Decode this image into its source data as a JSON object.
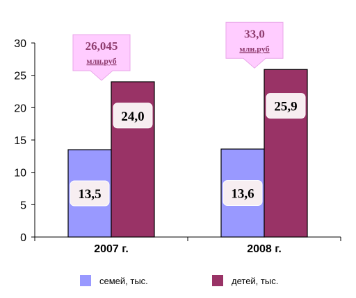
{
  "chart_data": {
    "type": "bar",
    "categories": [
      "2007 г.",
      "2008 г."
    ],
    "series": [
      {
        "name": "семей, тыс.",
        "values": [
          13.5,
          13.6
        ],
        "labels": [
          "13,5",
          "13,6"
        ],
        "color": "#9999ff"
      },
      {
        "name": "детей, тыс.",
        "values": [
          24.0,
          25.9
        ],
        "labels": [
          "24,0",
          "25,9"
        ],
        "color": "#993366"
      }
    ],
    "ylim": [
      0,
      30
    ],
    "yticks": [
      "0",
      "5",
      "10",
      "15",
      "20",
      "25",
      "30"
    ],
    "callouts": [
      {
        "value": "26,045",
        "unit": "млн.руб"
      },
      {
        "value": "33,0",
        "unit": "млн.руб"
      }
    ],
    "legend_position": "bottom",
    "grid": false
  },
  "colors": {
    "label_box_fill": "#f7eef1",
    "callout_fill": "#ffccff",
    "callout_text": "#8e3c6e"
  }
}
